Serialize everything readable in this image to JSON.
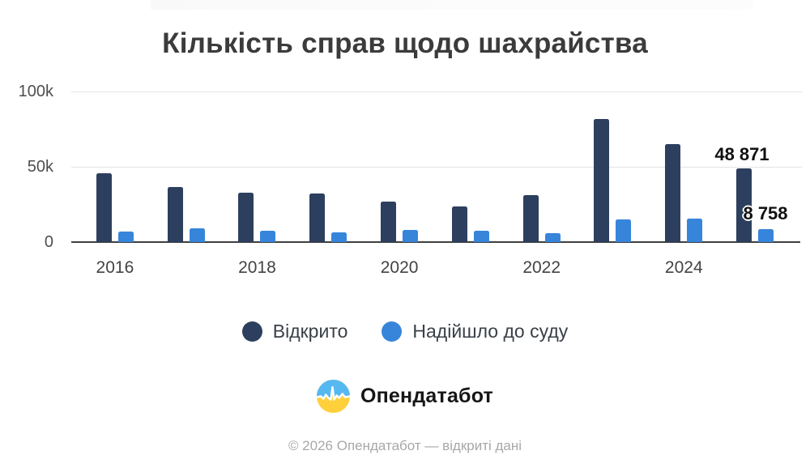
{
  "chart_data": {
    "type": "bar",
    "title": "Кількість справ щодо шахрайства",
    "categories": [
      "2016",
      "2017",
      "2018",
      "2019",
      "2020",
      "2021",
      "2022",
      "2023",
      "2024",
      "2025"
    ],
    "series": [
      {
        "name": "Відкрито",
        "color": "#2d3f5e",
        "values": [
          45700,
          36700,
          33000,
          32400,
          27100,
          23400,
          31400,
          81900,
          64900,
          48871
        ]
      },
      {
        "name": "Надійшло до суду",
        "color": "#3785db",
        "values": [
          6900,
          9000,
          7400,
          6400,
          8000,
          7400,
          5900,
          14900,
          15400,
          8758
        ]
      }
    ],
    "ylim": [
      0,
      100000
    ],
    "y_ticks": [
      {
        "label": "100k",
        "value": 100000
      },
      {
        "label": "50k",
        "value": 50000
      },
      {
        "label": "0",
        "value": 0
      }
    ],
    "x_tick_labels": [
      "2016",
      "",
      "2018",
      "",
      "2020",
      "",
      "2022",
      "",
      "2024",
      ""
    ],
    "annotations": [
      {
        "text": "48 871",
        "series": "Відкрито",
        "category": "2025"
      },
      {
        "text": "8 758",
        "series": "Надійшло до суду",
        "category": "2025"
      }
    ],
    "legend_position": "bottom",
    "grid": "horizontal",
    "axis_color": "#3f3f3f",
    "gridline_color": "#e3e3e3"
  },
  "brand": {
    "name": "Опендатабот",
    "logo_icon": "opendatabot-pulse-circle",
    "logo_colors": {
      "top": "#56b8f1",
      "bottom": "#fdd03c",
      "line": "#ffffff"
    }
  },
  "footer": {
    "text": "© 2026 Опендатабот — відкриті дані"
  }
}
